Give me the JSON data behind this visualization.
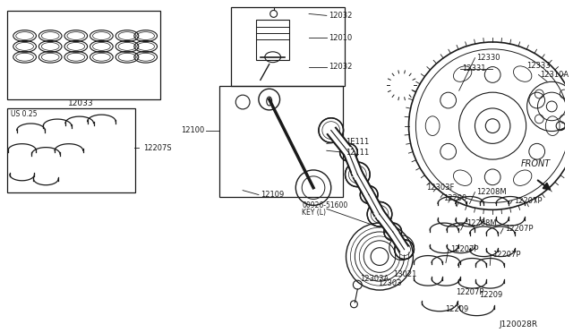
{
  "bg_color": "#ffffff",
  "line_color": "#1a1a1a",
  "text_color": "#1a1a1a",
  "fig_width": 6.4,
  "fig_height": 3.72,
  "dpi": 100,
  "xlim": [
    0,
    640
  ],
  "ylim": [
    0,
    372
  ]
}
